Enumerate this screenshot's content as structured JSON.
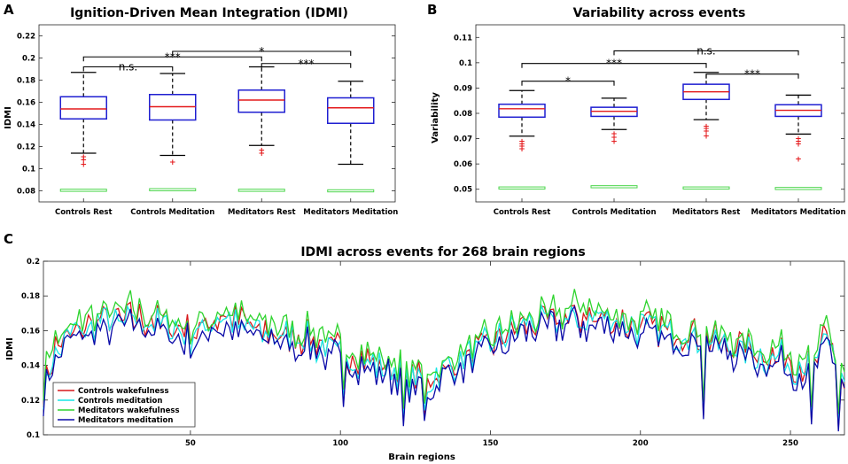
{
  "panels": {
    "a": {
      "letter": "A",
      "title": "Ignition-Driven Mean Integration (IDMI)",
      "ylabel": "IDMI"
    },
    "b": {
      "letter": "B",
      "title": "Variability across events",
      "ylabel": "Variability"
    },
    "c": {
      "letter": "C",
      "title": "IDMI across events for 268 brain regions",
      "ylabel": "IDMI",
      "xlabel": "Brain regions"
    }
  },
  "chart_data": [
    {
      "id": "a",
      "type": "box",
      "title": "Ignition-Driven Mean Integration (IDMI)",
      "ylabel": "IDMI",
      "ylim": [
        0.07,
        0.23
      ],
      "yticks": [
        0.08,
        0.1,
        0.12,
        0.14,
        0.16,
        0.18,
        0.2,
        0.22
      ],
      "ytick_labels": [
        "0.08",
        "0.1",
        "0.12",
        "0.14",
        "0.16",
        "0.18",
        "0.2",
        "0.22"
      ],
      "categories": [
        "Controls Rest",
        "Controls Meditation",
        "Meditators Rest",
        "Meditators Meditation"
      ],
      "boxes": [
        {
          "q1": 0.145,
          "median": 0.154,
          "q3": 0.165,
          "low": 0.114,
          "high": 0.187,
          "outliers": [
            0.104,
            0.108,
            0.111
          ]
        },
        {
          "q1": 0.144,
          "median": 0.156,
          "q3": 0.167,
          "low": 0.112,
          "high": 0.186,
          "outliers": [
            0.106
          ]
        },
        {
          "q1": 0.151,
          "median": 0.162,
          "q3": 0.171,
          "low": 0.121,
          "high": 0.192,
          "outliers": [
            0.114,
            0.117
          ]
        },
        {
          "q1": 0.141,
          "median": 0.155,
          "q3": 0.164,
          "low": 0.104,
          "high": 0.179,
          "outliers": []
        }
      ],
      "null_boxes": [
        0.0805,
        0.081,
        0.0805,
        0.08
      ],
      "significance": [
        {
          "from": 0,
          "to": 1,
          "y": 0.192,
          "label": "n.s."
        },
        {
          "from": 0,
          "to": 2,
          "y": 0.201,
          "label": "***"
        },
        {
          "from": 1,
          "to": 3,
          "y": 0.206,
          "label": "*"
        },
        {
          "from": 2,
          "to": 3,
          "y": 0.195,
          "label": "***"
        }
      ]
    },
    {
      "id": "b",
      "type": "box",
      "title": "Variability across events",
      "ylabel": "Variability",
      "ylim": [
        0.045,
        0.115
      ],
      "yticks": [
        0.05,
        0.06,
        0.07,
        0.08,
        0.09,
        0.1,
        0.11
      ],
      "ytick_labels": [
        "0.05",
        "0.06",
        "0.07",
        "0.08",
        "0.09",
        "0.1",
        "0.11"
      ],
      "categories": [
        "Controls Rest",
        "Controls Meditation",
        "Meditators Rest",
        "Meditators Meditation"
      ],
      "boxes": [
        {
          "q1": 0.0785,
          "median": 0.0818,
          "q3": 0.0836,
          "low": 0.071,
          "high": 0.089,
          "outliers": [
            0.066,
            0.067,
            0.068,
            0.069
          ]
        },
        {
          "q1": 0.0788,
          "median": 0.0808,
          "q3": 0.0824,
          "low": 0.0736,
          "high": 0.086,
          "outliers": [
            0.069,
            0.0705,
            0.072
          ]
        },
        {
          "q1": 0.0855,
          "median": 0.0885,
          "q3": 0.0915,
          "low": 0.0775,
          "high": 0.0962,
          "outliers": [
            0.071,
            0.073,
            0.074,
            0.075
          ]
        },
        {
          "q1": 0.0788,
          "median": 0.0812,
          "q3": 0.0834,
          "low": 0.0718,
          "high": 0.0872,
          "outliers": [
            0.062,
            0.068,
            0.069,
            0.07
          ]
        }
      ],
      "null_boxes": [
        0.0505,
        0.051,
        0.0505,
        0.0503
      ],
      "significance": [
        {
          "from": 0,
          "to": 1,
          "y": 0.0927,
          "label": "*"
        },
        {
          "from": 0,
          "to": 2,
          "y": 0.0997,
          "label": "***"
        },
        {
          "from": 1,
          "to": 3,
          "y": 0.1047,
          "label": "n.s."
        },
        {
          "from": 2,
          "to": 3,
          "y": 0.0955,
          "label": "***"
        }
      ]
    },
    {
      "id": "c",
      "type": "line",
      "title": "IDMI across events for 268 brain regions",
      "xlabel": "Brain regions",
      "ylabel": "IDMI",
      "xlim": [
        1,
        268
      ],
      "ylim": [
        0.1,
        0.2
      ],
      "xticks": [
        50,
        100,
        150,
        200,
        250
      ],
      "xtick_labels": [
        "50",
        "100",
        "150",
        "200",
        "250"
      ],
      "yticks": [
        0.1,
        0.12,
        0.14,
        0.16,
        0.18,
        0.2
      ],
      "ytick_labels": [
        "0.1",
        "0.12",
        "0.14",
        "0.16",
        "0.18",
        "0.2"
      ],
      "legend_position": "bottom-left",
      "profile_x": [
        1,
        5,
        10,
        20,
        30,
        40,
        50,
        60,
        70,
        80,
        90,
        100,
        110,
        120,
        130,
        140,
        150,
        160,
        170,
        180,
        190,
        200,
        210,
        220,
        230,
        240,
        250,
        258,
        262,
        268
      ],
      "profile_y": [
        0.128,
        0.15,
        0.158,
        0.166,
        0.168,
        0.164,
        0.158,
        0.168,
        0.162,
        0.158,
        0.154,
        0.148,
        0.142,
        0.135,
        0.132,
        0.143,
        0.153,
        0.162,
        0.166,
        0.168,
        0.166,
        0.162,
        0.16,
        0.157,
        0.152,
        0.146,
        0.143,
        0.14,
        0.158,
        0.128
      ],
      "series": [
        {
          "name": "Controls wakefulness",
          "color": "#d7191c",
          "offset": 0.0,
          "amp": 0.0085,
          "seed": 11
        },
        {
          "name": "Controls meditation",
          "color": "#17e6e6",
          "offset": -0.001,
          "amp": 0.009,
          "seed": 23
        },
        {
          "name": "Meditators wakefulness",
          "color": "#2fd42f",
          "offset": 0.0045,
          "amp": 0.0095,
          "seed": 37
        },
        {
          "name": "Meditators meditation",
          "color": "#0a0aa8",
          "offset": -0.0045,
          "amp": 0.0095,
          "seed": 51
        }
      ],
      "dips": [
        {
          "x": 121,
          "y": 0.107
        },
        {
          "x": 128,
          "y": 0.11
        },
        {
          "x": 221,
          "y": 0.111
        },
        {
          "x": 257,
          "y": 0.108
        },
        {
          "x": 266,
          "y": 0.104
        },
        {
          "x": 101,
          "y": 0.118
        }
      ]
    }
  ]
}
